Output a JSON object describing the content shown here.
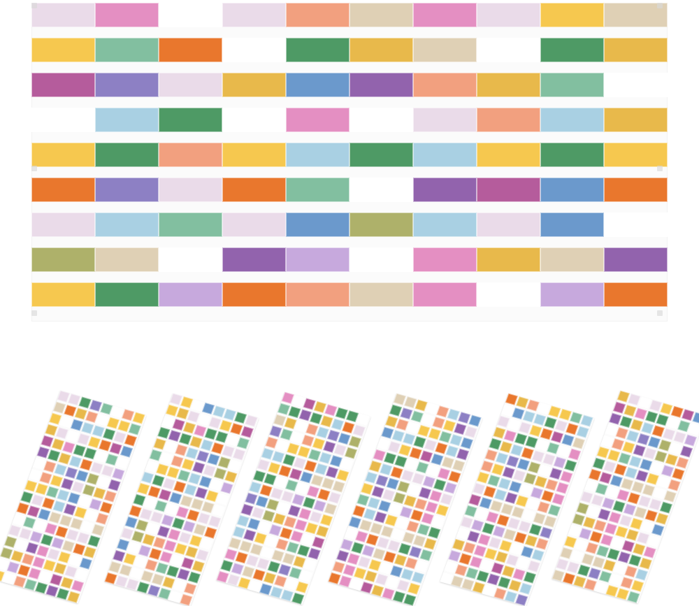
{
  "colors": {
    "background": "#ffffff",
    "lavender_pale": "#eadbe9",
    "pink": "#e48fc2",
    "peach": "#f2a07f",
    "sand": "#dfd0b5",
    "yellow": "#f6c84f",
    "mustard": "#e8b94b",
    "orange": "#e9772d",
    "mint": "#82bfa0",
    "green": "#4e9a65",
    "blue_pale": "#a9d0e3",
    "blue": "#6b99cc",
    "periwinkle": "#8d80c4",
    "purple": "#9263ad",
    "magenta": "#b55c9c",
    "olive": "#aeb16a",
    "lilac": "#c7a9dd",
    "white": "#ffffff"
  },
  "product_views": {
    "main_mat": "large-striped-placemat",
    "set_count": 6
  }
}
